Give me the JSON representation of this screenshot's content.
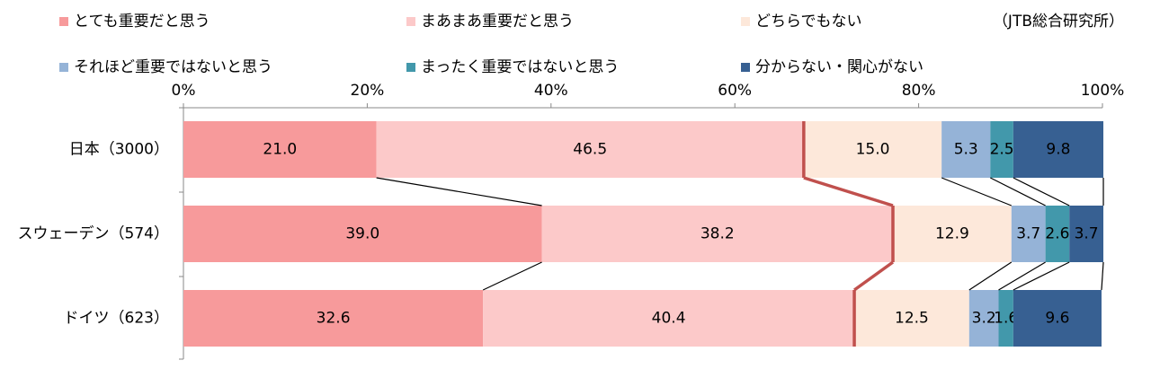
{
  "chart_data": {
    "type": "stacked_barh",
    "source": "（JTB総合研究所）",
    "categories": [
      "日本（3000）",
      "スウェーデン（574）",
      "ドイツ（623）"
    ],
    "series": [
      {
        "name": "とても重要だと思う",
        "color": "#f79a9b",
        "values": [
          21.0,
          39.0,
          32.6
        ],
        "value_labels": [
          "21.0",
          "39.0",
          "32.6"
        ]
      },
      {
        "name": "まあまあ重要だと思う",
        "color": "#fcc9c9",
        "values": [
          46.5,
          38.2,
          40.4
        ],
        "value_labels": [
          "46.5",
          "38.2",
          "40.4"
        ]
      },
      {
        "name": "どちらでもない",
        "color": "#fde8da",
        "values": [
          15.0,
          12.9,
          12.5
        ],
        "value_labels": [
          "15.0",
          "12.9",
          "12.5"
        ]
      },
      {
        "name": "それほど重要ではないと思う",
        "color": "#95b3d7",
        "values": [
          5.3,
          3.7,
          3.2
        ],
        "value_labels": [
          "5.3",
          "3.7",
          "3.2"
        ]
      },
      {
        "name": "まったく重要ではないと思う",
        "color": "#4298ab",
        "values": [
          2.5,
          2.6,
          1.6
        ],
        "value_labels": [
          "2.5",
          "2.6",
          "1.6"
        ]
      },
      {
        "name": "分からない・関心がない",
        "color": "#376092",
        "values": [
          9.8,
          3.7,
          9.6
        ],
        "value_labels": [
          "9.8",
          "3.7",
          "9.6"
        ]
      }
    ],
    "xlim": [
      0,
      100
    ],
    "xticks": [
      {
        "value": 0,
        "label": "0%"
      },
      {
        "value": 20,
        "label": "20%"
      },
      {
        "value": 40,
        "label": "40%"
      },
      {
        "value": 60,
        "label": "60%"
      },
      {
        "value": 80,
        "label": "80%"
      },
      {
        "value": 100,
        "label": "100%"
      }
    ]
  }
}
